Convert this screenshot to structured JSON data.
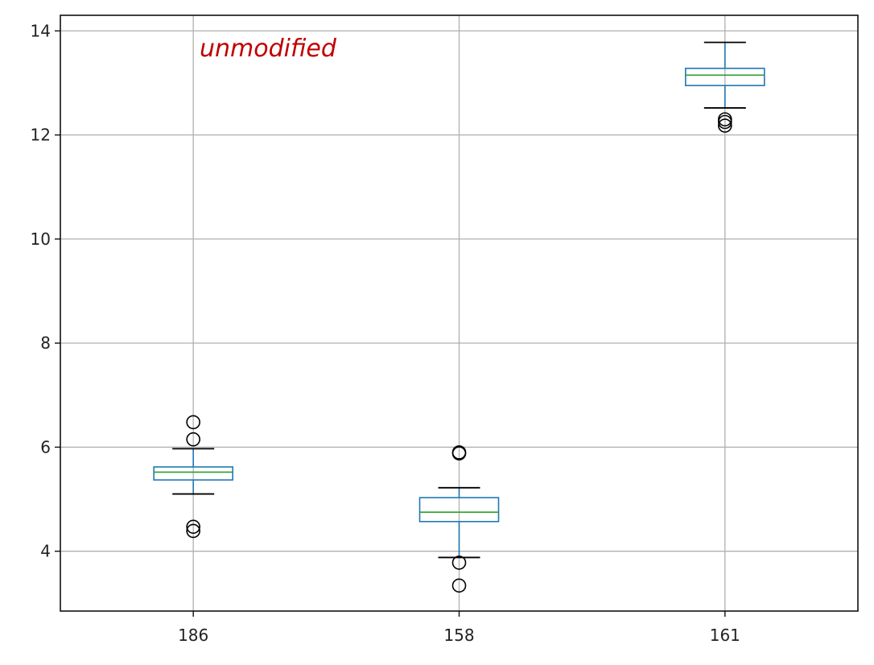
{
  "annotation": "unmodified",
  "chart_data": {
    "type": "box",
    "title": "",
    "xlabel": "",
    "ylabel": "",
    "categories": [
      "186",
      "158",
      "161"
    ],
    "ylim": [
      2.85,
      14.3
    ],
    "xlim": [
      0.5,
      3.5
    ],
    "yticks": [
      4,
      6,
      8,
      10,
      12,
      14
    ],
    "ytick_labels": [
      "4",
      "6",
      "8",
      "10",
      "12",
      "14"
    ],
    "grid": true,
    "colors": {
      "box": "#1f77b4",
      "median": "#2ca02c",
      "whisker": "#1f77b4",
      "cap": "#000000",
      "flier": "#000000",
      "annotation": "#c00000"
    },
    "boxes": [
      {
        "category": "186",
        "whisker_low": 5.1,
        "q1": 5.37,
        "median": 5.52,
        "q3": 5.62,
        "whisker_high": 5.97,
        "outliers": [
          6.48,
          6.15,
          4.47,
          4.39
        ]
      },
      {
        "category": "158",
        "whisker_low": 3.88,
        "q1": 4.57,
        "median": 4.75,
        "q3": 5.03,
        "whisker_high": 5.22,
        "outliers": [
          5.9,
          5.88,
          3.78,
          3.34
        ]
      },
      {
        "category": "161",
        "whisker_low": 12.52,
        "q1": 12.95,
        "median": 13.15,
        "q3": 13.28,
        "whisker_high": 13.78,
        "outliers": [
          12.3,
          12.25,
          12.18
        ]
      }
    ]
  }
}
